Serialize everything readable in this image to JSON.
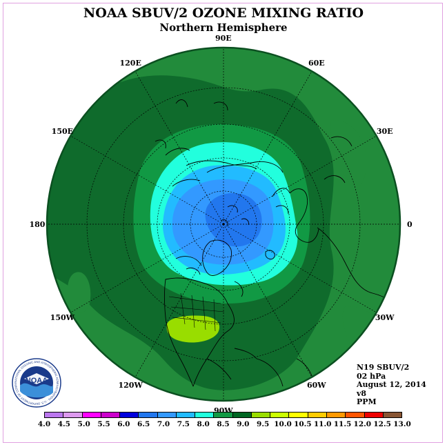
{
  "header": {
    "title": "NOAA SBUV/2 OZONE MIXING RATIO",
    "subtitle": "Northern Hemisphere"
  },
  "longitude_labels": [
    {
      "text": "90E",
      "angle": 90
    },
    {
      "text": "60E",
      "angle": 60
    },
    {
      "text": "30E",
      "angle": 30
    },
    {
      "text": "0",
      "angle": 0
    },
    {
      "text": "30W",
      "angle": -30
    },
    {
      "text": "60W",
      "angle": -60
    },
    {
      "text": "90W",
      "angle": -90
    },
    {
      "text": "120W",
      "angle": -120
    },
    {
      "text": "150W",
      "angle": -150
    },
    {
      "text": "180",
      "angle": 180
    },
    {
      "text": "150E",
      "angle": 150
    },
    {
      "text": "120E",
      "angle": 120
    }
  ],
  "info": {
    "satellite": "N19 SBUV/2",
    "pressure": "02 hPa",
    "date": "August 12, 2014",
    "version": "v8",
    "units": "PPM"
  },
  "logo": {
    "text": "NOAA",
    "ring_text": "NATIONAL OCEANIC AND ATMOSPHERIC ADMINISTRATION · U.S. DEPARTMENT OF COMMERCE"
  },
  "colorbar": {
    "ticks": [
      "4.0",
      "4.5",
      "5.0",
      "5.5",
      "6.0",
      "6.5",
      "7.0",
      "7.5",
      "8.0",
      "8.5",
      "9.0",
      "9.5",
      "10.0",
      "10.5",
      "11.0",
      "11.5",
      "12.0",
      "12.5",
      "13.0"
    ],
    "colors": [
      "#bb77ee",
      "#dd99ee",
      "#ff00ff",
      "#cc00cc",
      "#0000dd",
      "#2277ee",
      "#3399ff",
      "#22bbff",
      "#22ffdd",
      "#119944",
      "#006622",
      "#99dd00",
      "#ccff00",
      "#ffff00",
      "#ffcc00",
      "#ff9900",
      "#ff5500",
      "#ee0000",
      "#885533"
    ]
  },
  "map_colors": {
    "outer": "#228b3b",
    "dark": "#0f6b2c",
    "mid": "#119944",
    "cyan": "#22ffdd",
    "lightblue": "#22bbff",
    "blue": "#3399ff",
    "deepblue": "#2277ee",
    "yellowgreen": "#99dd00"
  }
}
